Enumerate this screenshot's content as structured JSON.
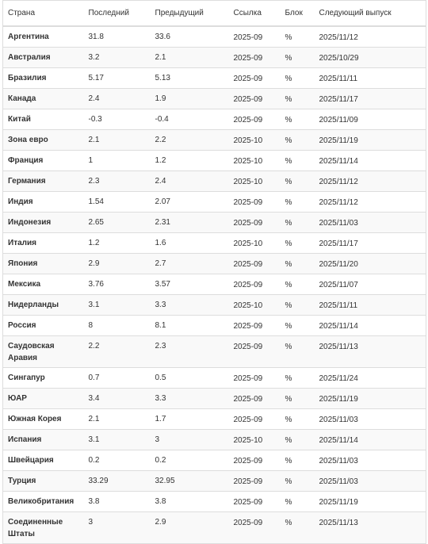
{
  "table": {
    "headers": [
      "Страна",
      "Последний",
      "Предыдущий",
      "Ссылка",
      "Блок",
      "Следующий выпуск"
    ],
    "rows": [
      {
        "country": "Аргентина",
        "last": "31.8",
        "previous": "33.6",
        "reference": "2025-09",
        "unit": "%",
        "next_release": "2025/11/12"
      },
      {
        "country": "Австралия",
        "last": "3.2",
        "previous": "2.1",
        "reference": "2025-09",
        "unit": "%",
        "next_release": "2025/10/29"
      },
      {
        "country": "Бразилия",
        "last": "5.17",
        "previous": "5.13",
        "reference": "2025-09",
        "unit": "%",
        "next_release": "2025/11/11"
      },
      {
        "country": "Канада",
        "last": "2.4",
        "previous": "1.9",
        "reference": "2025-09",
        "unit": "%",
        "next_release": "2025/11/17"
      },
      {
        "country": "Китай",
        "last": "-0.3",
        "previous": "-0.4",
        "reference": "2025-09",
        "unit": "%",
        "next_release": "2025/11/09"
      },
      {
        "country": "Зона евро",
        "last": "2.1",
        "previous": "2.2",
        "reference": "2025-10",
        "unit": "%",
        "next_release": "2025/11/19"
      },
      {
        "country": "Франция",
        "last": "1",
        "previous": "1.2",
        "reference": "2025-10",
        "unit": "%",
        "next_release": "2025/11/14"
      },
      {
        "country": "Германия",
        "last": "2.3",
        "previous": "2.4",
        "reference": "2025-10",
        "unit": "%",
        "next_release": "2025/11/12"
      },
      {
        "country": "Индия",
        "last": "1.54",
        "previous": "2.07",
        "reference": "2025-09",
        "unit": "%",
        "next_release": "2025/11/12"
      },
      {
        "country": "Индонезия",
        "last": "2.65",
        "previous": "2.31",
        "reference": "2025-09",
        "unit": "%",
        "next_release": "2025/11/03"
      },
      {
        "country": "Италия",
        "last": "1.2",
        "previous": "1.6",
        "reference": "2025-10",
        "unit": "%",
        "next_release": "2025/11/17"
      },
      {
        "country": "Япония",
        "last": "2.9",
        "previous": "2.7",
        "reference": "2025-09",
        "unit": "%",
        "next_release": "2025/11/20"
      },
      {
        "country": "Мексика",
        "last": "3.76",
        "previous": "3.57",
        "reference": "2025-09",
        "unit": "%",
        "next_release": "2025/11/07"
      },
      {
        "country": "Нидерланды",
        "last": "3.1",
        "previous": "3.3",
        "reference": "2025-10",
        "unit": "%",
        "next_release": "2025/11/11"
      },
      {
        "country": "Россия",
        "last": "8",
        "previous": "8.1",
        "reference": "2025-09",
        "unit": "%",
        "next_release": "2025/11/14"
      },
      {
        "country": "Саудовская Аравия",
        "last": "2.2",
        "previous": "2.3",
        "reference": "2025-09",
        "unit": "%",
        "next_release": "2025/11/13"
      },
      {
        "country": "Сингапур",
        "last": "0.7",
        "previous": "0.5",
        "reference": "2025-09",
        "unit": "%",
        "next_release": "2025/11/24"
      },
      {
        "country": "ЮАР",
        "last": "3.4",
        "previous": "3.3",
        "reference": "2025-09",
        "unit": "%",
        "next_release": "2025/11/19"
      },
      {
        "country": "Южная Корея",
        "last": "2.1",
        "previous": "1.7",
        "reference": "2025-09",
        "unit": "%",
        "next_release": "2025/11/03"
      },
      {
        "country": "Испания",
        "last": "3.1",
        "previous": "3",
        "reference": "2025-10",
        "unit": "%",
        "next_release": "2025/11/14"
      },
      {
        "country": "Швейцария",
        "last": "0.2",
        "previous": "0.2",
        "reference": "2025-09",
        "unit": "%",
        "next_release": "2025/11/03"
      },
      {
        "country": "Турция",
        "last": "33.29",
        "previous": "32.95",
        "reference": "2025-09",
        "unit": "%",
        "next_release": "2025/11/03"
      },
      {
        "country": "Великобритания",
        "last": "3.8",
        "previous": "3.8",
        "reference": "2025-09",
        "unit": "%",
        "next_release": "2025/11/19"
      },
      {
        "country": "Соединенные Штаты",
        "last": "3",
        "previous": "2.9",
        "reference": "2025-09",
        "unit": "%",
        "next_release": "2025/11/13"
      }
    ]
  },
  "colors": {
    "negative_value": "#aa1111",
    "text": "#333333",
    "border": "#dddddd",
    "row_stripe": "#f9f9f9"
  }
}
